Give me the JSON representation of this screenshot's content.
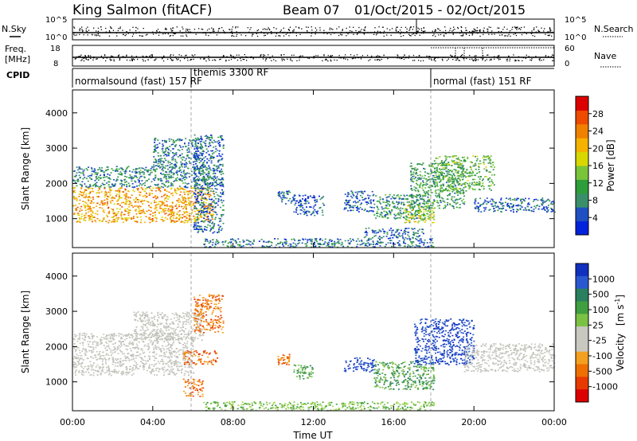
{
  "header": {
    "station": "King Salmon (fitACF)",
    "beam": "Beam 07",
    "date_range": "01/Oct/2015 - 02/Oct/2015"
  },
  "status_panels": {
    "nsky_label": "N.Sky",
    "nsky_ticks": [
      "10^5",
      "10^0"
    ],
    "nsearch_label": "N.Search",
    "freq_label": [
      "Freq.",
      "[MHz]"
    ],
    "freq_ticks": [
      "18",
      "8"
    ],
    "nave_label": "Nave",
    "nave_ticks": [
      "60",
      "0"
    ],
    "cpid_label": "CPID",
    "cpid_segments": [
      {
        "start_hour": 0,
        "label": "normalsound (fast) 157 RF"
      },
      {
        "start_hour": 6,
        "label": "themis 3300 RF"
      },
      {
        "start_hour": 18,
        "label": "normal (fast) 151 RF"
      }
    ]
  },
  "colors": {
    "power_scale": [
      "#0022dd",
      "#1f4fc2",
      "#3a8f6a",
      "#2e9e3a",
      "#7ac43a",
      "#d8d800",
      "#f5b300",
      "#f08000",
      "#ee4a00",
      "#dd0000"
    ],
    "velocity_scale": [
      "#1030c0",
      "#2a58d0",
      "#2a7f5e",
      "#3f9e3f",
      "#7bc144",
      "#c8c8c0",
      "#c8c8c0",
      "#f3a020",
      "#ef7000",
      "#e83a00",
      "#dd0000"
    ],
    "dashed_markers": "#aaaaaa"
  },
  "chart_data": [
    {
      "type": "heatmap",
      "title": "",
      "xlabel": "",
      "ylabel": "Slant Range [km]",
      "xlim": [
        0,
        24
      ],
      "ylim": [
        180,
        4650
      ],
      "yticks": [
        1000,
        2000,
        3000,
        4000
      ],
      "colorbar": {
        "label": "Power [dB]",
        "range": [
          0,
          32
        ],
        "tick_values": [
          4,
          8,
          12,
          16,
          20,
          24,
          28
        ],
        "tick_labels": [
          "4",
          "8",
          "12",
          "16",
          "20",
          "24",
          "28"
        ]
      },
      "scatter_regions": [
        {
          "t": [
            0.0,
            7.0
          ],
          "r": [
            900,
            1900
          ],
          "value": 22
        },
        {
          "t": [
            0.0,
            7.0
          ],
          "r": [
            1900,
            2500
          ],
          "value": 8
        },
        {
          "t": [
            4.0,
            6.5
          ],
          "r": [
            2500,
            3300
          ],
          "value": 7
        },
        {
          "t": [
            6.0,
            7.5
          ],
          "r": [
            600,
            3400
          ],
          "value": 6
        },
        {
          "t": [
            10.2,
            11.0
          ],
          "r": [
            1400,
            1800
          ],
          "value": 6
        },
        {
          "t": [
            11.0,
            12.5
          ],
          "r": [
            1100,
            1700
          ],
          "value": 5
        },
        {
          "t": [
            13.5,
            15.0
          ],
          "r": [
            1200,
            1800
          ],
          "value": 5
        },
        {
          "t": [
            15.0,
            17.8
          ],
          "r": [
            1000,
            1700
          ],
          "value": 9
        },
        {
          "t": [
            16.5,
            18.0
          ],
          "r": [
            900,
            1400
          ],
          "value": 16
        },
        {
          "t": [
            16.8,
            19.5
          ],
          "r": [
            1300,
            2600
          ],
          "value": 10
        },
        {
          "t": [
            18.0,
            21.0
          ],
          "r": [
            1800,
            2800
          ],
          "value": 12
        },
        {
          "t": [
            20.0,
            24.0
          ],
          "r": [
            1200,
            1600
          ],
          "value": 6
        },
        {
          "t": [
            6.5,
            18.0
          ],
          "r": [
            200,
            450
          ],
          "value": 7
        },
        {
          "t": [
            14.5,
            17.5
          ],
          "r": [
            450,
            750
          ],
          "value": 6
        }
      ]
    },
    {
      "type": "heatmap",
      "title": "",
      "xlabel": "Time UT",
      "ylabel": "Slant Range [km]",
      "xlim": [
        0,
        24
      ],
      "ylim": [
        180,
        4650
      ],
      "xticks": [
        0,
        4,
        8,
        12,
        16,
        20,
        24
      ],
      "xtick_labels": [
        "00:00",
        "04:00",
        "08:00",
        "12:00",
        "16:00",
        "20:00",
        "00:00"
      ],
      "yticks": [
        1000,
        2000,
        3000,
        4000
      ],
      "colorbar": {
        "label": "Velocity [m s^-1]",
        "tick_labels": [
          "1000",
          "500",
          "100",
          "25",
          "-25",
          "-100",
          "-500",
          "-1000"
        ]
      },
      "scatter_regions": [
        {
          "t": [
            0.0,
            6.0
          ],
          "r": [
            1200,
            2400
          ],
          "value": "gray"
        },
        {
          "t": [
            3.0,
            6.5
          ],
          "r": [
            2200,
            3000
          ],
          "value": "gray"
        },
        {
          "t": [
            5.5,
            7.2
          ],
          "r": [
            1500,
            1900
          ],
          "value": "orange"
        },
        {
          "t": [
            5.5,
            6.5
          ],
          "r": [
            600,
            1100
          ],
          "value": "orange"
        },
        {
          "t": [
            6.0,
            7.5
          ],
          "r": [
            2400,
            3500
          ],
          "value": "orange"
        },
        {
          "t": [
            10.2,
            10.8
          ],
          "r": [
            1500,
            1800
          ],
          "value": "orange"
        },
        {
          "t": [
            11.0,
            12.0
          ],
          "r": [
            1100,
            1500
          ],
          "value": "green"
        },
        {
          "t": [
            13.5,
            15.0
          ],
          "r": [
            1300,
            1700
          ],
          "value": "blue"
        },
        {
          "t": [
            15.0,
            18.0
          ],
          "r": [
            800,
            1600
          ],
          "value": "green"
        },
        {
          "t": [
            17.0,
            20.0
          ],
          "r": [
            1500,
            2800
          ],
          "value": "blue"
        },
        {
          "t": [
            19.5,
            24.0
          ],
          "r": [
            1300,
            2100
          ],
          "value": "gray"
        },
        {
          "t": [
            6.5,
            18.0
          ],
          "r": [
            200,
            450
          ],
          "value": "lightgreen"
        }
      ]
    }
  ]
}
